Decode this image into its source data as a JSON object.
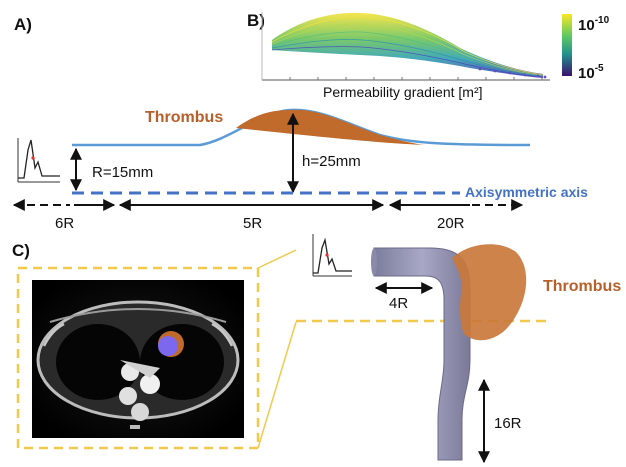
{
  "panels": {
    "a": "A)",
    "b": "B)",
    "c": "C)"
  },
  "panel_a": {
    "thrombus_label": "Thrombus",
    "radius_label": "R=15mm",
    "height_label": "h=25mm",
    "axis_label": "Axisymmetric axis",
    "segments": [
      "6R",
      "5R",
      "20R"
    ]
  },
  "panel_b": {
    "xlabel": "Permeability gradient [m²]",
    "colorbar": {
      "top_label": "10",
      "top_exp": "-10",
      "bottom_label": "10",
      "bottom_exp": "-5"
    }
  },
  "panel_c": {
    "thrombus_label": "Thrombus",
    "inlet_length": "4R",
    "outlet_length": "16R"
  },
  "colors": {
    "vessel_wall": "#5b9bd5",
    "axis": "#4472c4",
    "thrombus": "#c06a2b",
    "thrombus_label": "#b8602a",
    "dashed_guide": "#f2c94c",
    "vessel_3d": "#9a9ab8",
    "waveform_peak": "#e03030"
  }
}
